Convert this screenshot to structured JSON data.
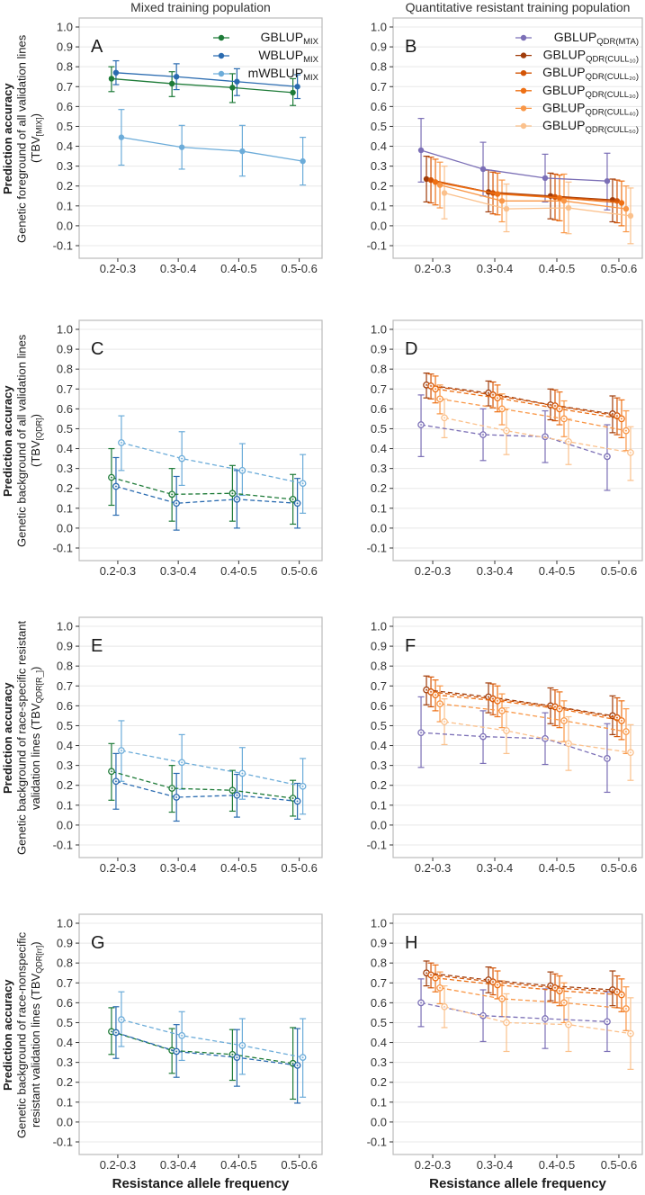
{
  "figure": {
    "col_titles": [
      "Mixed training population",
      "Quantitative resistant training population"
    ],
    "x_axis_title": "Resistance allele frequency",
    "colors": {
      "panel_border": "#bbbbbb",
      "gridline": "#e8e8e8",
      "tick": "#333333",
      "text": "#1a1a1a",
      "title": "#333333"
    }
  },
  "chart_data": {
    "type": "line",
    "categories": [
      "0.2-0.3",
      "0.3-0.4",
      "0.4-0.5",
      "0.5-0.6"
    ],
    "y_tick_labels": [
      "1.0",
      "0.9",
      "0.8",
      "0.7",
      "0.6",
      "0.5",
      "0.4",
      "0.3",
      "0.2",
      "0.1",
      "0.0",
      "-0.1"
    ],
    "y_ticks": [
      1.0,
      0.9,
      0.8,
      0.7,
      0.6,
      0.5,
      0.4,
      0.3,
      0.2,
      0.1,
      0.0,
      -0.1
    ],
    "ylim": [
      -0.17,
      1.06
    ],
    "grid": "horizontal-only",
    "series_defs": {
      "mix": [
        {
          "name_main": "GBLUP",
          "name_sub": "MIX",
          "color": "#1e7b38"
        },
        {
          "name_main": "WBLUP",
          "name_sub": "MIX",
          "color": "#2a6bb0"
        },
        {
          "name_main": "mWBLUP",
          "name_sub": "MIX",
          "color": "#6cacd9"
        }
      ],
      "qdr": [
        {
          "name_main": "GBLUP",
          "name_sub": "QDR(MTA)",
          "color": "#7b6fb6"
        },
        {
          "name_main": "GBLUP",
          "name_sub": "QDR(CULL₁₀)",
          "color": "#a03c0a"
        },
        {
          "name_main": "GBLUP",
          "name_sub": "QDR(CULL₂₀)",
          "color": "#d35406"
        },
        {
          "name_main": "GBLUP",
          "name_sub": "QDR(CULL₃₀)",
          "color": "#ee7014"
        },
        {
          "name_main": "GBLUP",
          "name_sub": "QDR(CULL₄₀)",
          "color": "#f99747"
        },
        {
          "name_main": "GBLUP",
          "name_sub": "QDR(CULL₅₀)",
          "color": "#fbc18c"
        }
      ]
    },
    "panels": [
      {
        "label": "A",
        "series_set": "mix",
        "line_style": "solid",
        "marker": "filled",
        "legend": true,
        "ylabel": {
          "bold": "Prediction accuracy",
          "pre": "Genetic foreground of all validation lines (TBV",
          "sub": "[MIX]",
          "post": ")"
        },
        "series": [
          {
            "values": [
              0.74,
              0.715,
              0.695,
              0.67
            ],
            "err_lo": [
              0.675,
              0.65,
              0.62,
              0.605
            ],
            "err_hi": [
              0.8,
              0.775,
              0.765,
              0.74
            ]
          },
          {
            "values": [
              0.77,
              0.75,
              0.725,
              0.7
            ],
            "err_lo": [
              0.71,
              0.685,
              0.655,
              0.64
            ],
            "err_hi": [
              0.83,
              0.815,
              0.79,
              0.76
            ]
          },
          {
            "values": [
              0.445,
              0.395,
              0.375,
              0.325
            ],
            "err_lo": [
              0.305,
              0.285,
              0.25,
              0.205
            ],
            "err_hi": [
              0.585,
              0.505,
              0.505,
              0.445
            ]
          }
        ]
      },
      {
        "label": "B",
        "series_set": "qdr",
        "line_style": "solid",
        "marker": "filled",
        "legend": true,
        "ylabel": null,
        "series": [
          {
            "values": [
              0.38,
              0.285,
              0.24,
              0.225
            ],
            "err_lo": [
              0.22,
              0.15,
              0.12,
              0.08
            ],
            "err_hi": [
              0.54,
              0.42,
              0.36,
              0.365
            ]
          },
          {
            "values": [
              0.235,
              0.17,
              0.15,
              0.13
            ],
            "err_lo": [
              0.12,
              0.07,
              0.035,
              0.02
            ],
            "err_hi": [
              0.35,
              0.28,
              0.265,
              0.235
            ]
          },
          {
            "values": [
              0.23,
              0.165,
              0.145,
              0.125
            ],
            "err_lo": [
              0.115,
              0.06,
              0.03,
              0.015
            ],
            "err_hi": [
              0.345,
              0.27,
              0.26,
              0.23
            ]
          },
          {
            "values": [
              0.22,
              0.16,
              0.14,
              0.115
            ],
            "err_lo": [
              0.105,
              0.055,
              0.025,
              0.0
            ],
            "err_hi": [
              0.335,
              0.265,
              0.255,
              0.225
            ]
          },
          {
            "values": [
              0.205,
              0.125,
              0.125,
              0.085
            ],
            "err_lo": [
              0.09,
              0.02,
              -0.035,
              -0.03
            ],
            "err_hi": [
              0.32,
              0.23,
              0.26,
              0.2
            ]
          },
          {
            "values": [
              0.165,
              0.085,
              0.09,
              0.05
            ],
            "err_lo": [
              0.035,
              -0.03,
              -0.04,
              -0.09
            ],
            "err_hi": [
              0.3,
              0.21,
              0.22,
              0.19
            ]
          }
        ]
      },
      {
        "label": "C",
        "series_set": "mix",
        "line_style": "dashed",
        "marker": "open",
        "legend": false,
        "ylabel": {
          "bold": "Prediction accuracy",
          "pre": "Genetic background of all validation lines (TBV",
          "sub": "[QDR]",
          "post": ")"
        },
        "series": [
          {
            "values": [
              0.255,
              0.17,
              0.175,
              0.145
            ],
            "err_lo": [
              0.115,
              0.035,
              0.035,
              0.02
            ],
            "err_hi": [
              0.4,
              0.3,
              0.315,
              0.27
            ]
          },
          {
            "values": [
              0.21,
              0.125,
              0.145,
              0.125
            ],
            "err_lo": [
              0.065,
              -0.01,
              0.0,
              0.0
            ],
            "err_hi": [
              0.355,
              0.26,
              0.29,
              0.25
            ]
          },
          {
            "values": [
              0.43,
              0.35,
              0.29,
              0.225
            ],
            "err_lo": [
              0.29,
              0.215,
              0.165,
              0.075
            ],
            "err_hi": [
              0.565,
              0.485,
              0.425,
              0.37
            ]
          }
        ]
      },
      {
        "label": "D",
        "series_set": "qdr",
        "line_style": "dashed",
        "marker": "open",
        "legend": false,
        "ylabel": null,
        "series": [
          {
            "values": [
              0.52,
              0.47,
              0.46,
              0.36
            ],
            "err_lo": [
              0.36,
              0.34,
              0.33,
              0.19
            ],
            "err_hi": [
              0.67,
              0.6,
              0.59,
              0.52
            ]
          },
          {
            "values": [
              0.72,
              0.68,
              0.62,
              0.575
            ],
            "err_lo": [
              0.655,
              0.615,
              0.545,
              0.48
            ],
            "err_hi": [
              0.78,
              0.74,
              0.7,
              0.665
            ]
          },
          {
            "values": [
              0.715,
              0.67,
              0.615,
              0.565
            ],
            "err_lo": [
              0.65,
              0.605,
              0.54,
              0.47
            ],
            "err_hi": [
              0.775,
              0.735,
              0.695,
              0.655
            ]
          },
          {
            "values": [
              0.7,
              0.655,
              0.6,
              0.55
            ],
            "err_lo": [
              0.63,
              0.585,
              0.52,
              0.455
            ],
            "err_hi": [
              0.765,
              0.72,
              0.685,
              0.645
            ]
          },
          {
            "values": [
              0.65,
              0.6,
              0.55,
              0.49
            ],
            "err_lo": [
              0.575,
              0.52,
              0.46,
              0.39
            ],
            "err_hi": [
              0.72,
              0.675,
              0.64,
              0.59
            ]
          },
          {
            "values": [
              0.555,
              0.49,
              0.435,
              0.38
            ],
            "err_lo": [
              0.455,
              0.37,
              0.32,
              0.24
            ],
            "err_hi": [
              0.65,
              0.6,
              0.55,
              0.51
            ]
          }
        ]
      },
      {
        "label": "E",
        "series_set": "mix",
        "line_style": "dashed",
        "marker": "open",
        "legend": false,
        "ylabel": {
          "bold": "Prediction accuracy",
          "pre": "Genetic background of race-specific resistant validation lines (TBV",
          "sub": "QDR[R_]",
          "post": ")"
        },
        "series": [
          {
            "values": [
              0.27,
              0.185,
              0.175,
              0.135
            ],
            "err_lo": [
              0.125,
              0.065,
              0.07,
              0.045
            ],
            "err_hi": [
              0.41,
              0.3,
              0.275,
              0.225
            ]
          },
          {
            "values": [
              0.22,
              0.14,
              0.15,
              0.12
            ],
            "err_lo": [
              0.08,
              0.02,
              0.04,
              0.03
            ],
            "err_hi": [
              0.36,
              0.26,
              0.255,
              0.21
            ]
          },
          {
            "values": [
              0.375,
              0.315,
              0.26,
              0.195
            ],
            "err_lo": [
              0.22,
              0.18,
              0.13,
              0.055
            ],
            "err_hi": [
              0.525,
              0.455,
              0.39,
              0.335
            ]
          }
        ]
      },
      {
        "label": "F",
        "series_set": "qdr",
        "line_style": "dashed",
        "marker": "open",
        "legend": false,
        "ylabel": null,
        "series": [
          {
            "values": [
              0.465,
              0.445,
              0.435,
              0.335
            ],
            "err_lo": [
              0.29,
              0.31,
              0.305,
              0.165
            ],
            "err_hi": [
              0.645,
              0.575,
              0.565,
              0.51
            ]
          },
          {
            "values": [
              0.68,
              0.645,
              0.6,
              0.55
            ],
            "err_lo": [
              0.605,
              0.565,
              0.51,
              0.455
            ],
            "err_hi": [
              0.75,
              0.715,
              0.69,
              0.65
            ]
          },
          {
            "values": [
              0.67,
              0.635,
              0.595,
              0.54
            ],
            "err_lo": [
              0.595,
              0.555,
              0.5,
              0.445
            ],
            "err_hi": [
              0.745,
              0.71,
              0.68,
              0.64
            ]
          },
          {
            "values": [
              0.655,
              0.625,
              0.585,
              0.525
            ],
            "err_lo": [
              0.575,
              0.545,
              0.49,
              0.43
            ],
            "err_hi": [
              0.73,
              0.7,
              0.67,
              0.625
            ]
          },
          {
            "values": [
              0.61,
              0.575,
              0.525,
              0.47
            ],
            "err_lo": [
              0.52,
              0.49,
              0.42,
              0.36
            ],
            "err_hi": [
              0.7,
              0.66,
              0.625,
              0.585
            ]
          },
          {
            "values": [
              0.52,
              0.475,
              0.41,
              0.365
            ],
            "err_lo": [
              0.405,
              0.36,
              0.275,
              0.225
            ],
            "err_hi": [
              0.635,
              0.59,
              0.545,
              0.505
            ]
          }
        ]
      },
      {
        "label": "G",
        "series_set": "mix",
        "line_style": "dashed",
        "marker": "open",
        "legend": false,
        "ylabel": {
          "bold": "Prediction accuracy",
          "pre": "Genetic background of race-nonspecific resistant validation lines (TBV",
          "sub": "QDR[rr]",
          "post": ")"
        },
        "series": [
          {
            "values": [
              0.455,
              0.36,
              0.34,
              0.295
            ],
            "err_lo": [
              0.34,
              0.245,
              0.21,
              0.115
            ],
            "err_hi": [
              0.575,
              0.47,
              0.465,
              0.475
            ]
          },
          {
            "values": [
              0.45,
              0.355,
              0.325,
              0.285
            ],
            "err_lo": [
              0.32,
              0.225,
              0.18,
              0.095
            ],
            "err_hi": [
              0.58,
              0.49,
              0.465,
              0.47
            ]
          },
          {
            "values": [
              0.515,
              0.435,
              0.385,
              0.325
            ],
            "err_lo": [
              0.38,
              0.31,
              0.24,
              0.125
            ],
            "err_hi": [
              0.655,
              0.555,
              0.52,
              0.52
            ]
          }
        ]
      },
      {
        "label": "H",
        "series_set": "qdr",
        "line_style": "dashed",
        "marker": "open",
        "legend": false,
        "ylabel": null,
        "series": [
          {
            "values": [
              0.6,
              0.535,
              0.52,
              0.505
            ],
            "err_lo": [
              0.48,
              0.405,
              0.37,
              0.355
            ],
            "err_hi": [
              0.72,
              0.665,
              0.67,
              0.655
            ]
          },
          {
            "values": [
              0.75,
              0.715,
              0.685,
              0.665
            ],
            "err_lo": [
              0.685,
              0.65,
              0.61,
              0.585
            ],
            "err_hi": [
              0.81,
              0.78,
              0.755,
              0.76
            ]
          },
          {
            "values": [
              0.74,
              0.705,
              0.675,
              0.655
            ],
            "err_lo": [
              0.675,
              0.64,
              0.6,
              0.575
            ],
            "err_hi": [
              0.8,
              0.775,
              0.745,
              0.735
            ]
          },
          {
            "values": [
              0.725,
              0.69,
              0.66,
              0.64
            ],
            "err_lo": [
              0.655,
              0.62,
              0.585,
              0.555
            ],
            "err_hi": [
              0.79,
              0.76,
              0.735,
              0.72
            ]
          },
          {
            "values": [
              0.675,
              0.62,
              0.6,
              0.57
            ],
            "err_lo": [
              0.595,
              0.53,
              0.5,
              0.46
            ],
            "err_hi": [
              0.755,
              0.71,
              0.7,
              0.68
            ]
          },
          {
            "values": [
              0.58,
              0.5,
              0.49,
              0.445
            ],
            "err_lo": [
              0.475,
              0.355,
              0.355,
              0.265
            ],
            "err_hi": [
              0.685,
              0.645,
              0.625,
              0.625
            ]
          }
        ]
      }
    ]
  }
}
